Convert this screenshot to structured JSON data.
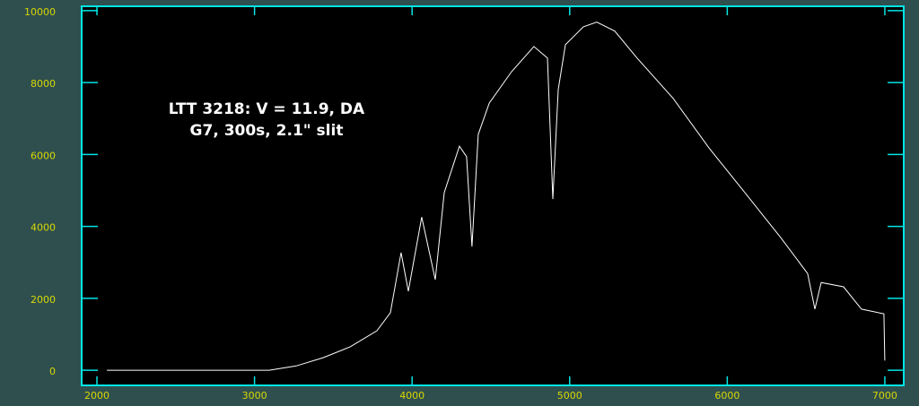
{
  "chart_data": {
    "type": "line",
    "annotations": [
      "LTT 3218: V = 11.9, DA",
      "G7, 300s, 2.1\" slit"
    ],
    "series": [
      {
        "color": "#ffffff",
        "x": [
          2063,
          3050,
          3093,
          3264,
          3435,
          3606,
          3777,
          3862,
          3930,
          3976,
          4061,
          4147,
          4204,
          4300,
          4346,
          4380,
          4420,
          4490,
          4631,
          4773,
          4859,
          4893,
          4927,
          4973,
          5087,
          5172,
          5286,
          5428,
          5656,
          5884,
          6112,
          6339,
          6510,
          6556,
          6596,
          6738,
          6852,
          6994,
          7000
        ],
        "values": [
          0,
          0,
          0,
          120,
          350,
          650,
          1100,
          1600,
          3270,
          2200,
          4260,
          2520,
          4940,
          6230,
          5940,
          3440,
          6560,
          7430,
          8300,
          9000,
          8680,
          4760,
          7800,
          9050,
          9550,
          9680,
          9430,
          8680,
          7560,
          6180,
          4940,
          3690,
          2690,
          1700,
          2440,
          2320,
          1700,
          1570,
          270
        ]
      }
    ],
    "xlim": [
      1903,
      7120
    ],
    "ylim": [
      -420,
      10120
    ],
    "xticks": [
      2000,
      3000,
      4000,
      5000,
      6000,
      7000
    ],
    "yticks": [
      0,
      2000,
      4000,
      6000,
      8000,
      10000
    ]
  }
}
